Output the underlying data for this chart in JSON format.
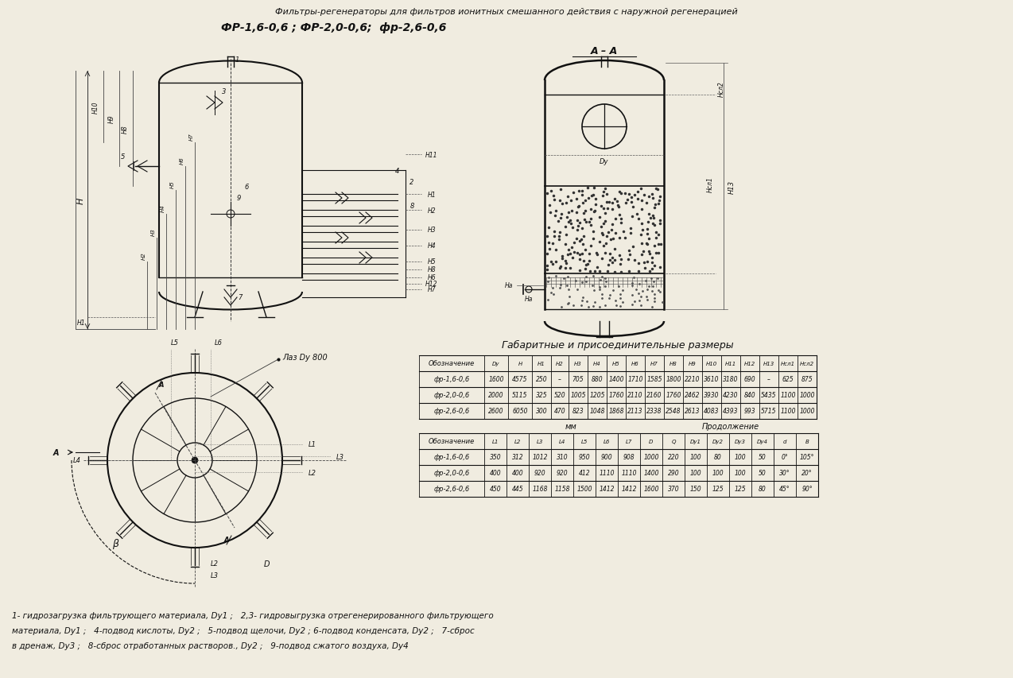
{
  "title_line1": "Фильтры-регенераторы для фильтров ионитных смешанного действия с наружной регенерацией",
  "title_line2": "ФР-1,6-0,6 ; ФР-2,0-0,6;  фр-2,6-0,6",
  "section_label": "А – А",
  "table_title": "Габаритные и присоединительные размеры",
  "mm_label": "мм",
  "prodolzhenie": "Продолжение",
  "table1_headers": [
    "Обозначение",
    "Dy",
    "H",
    "H1",
    "H2",
    "H3",
    "H4",
    "H5",
    "H6",
    "H7",
    "H8",
    "H9",
    "H10",
    "H11",
    "H12",
    "H13",
    "Нсл1",
    "Нсл2"
  ],
  "table1_rows": [
    [
      "фр-1,6-0,6",
      "1600",
      "4575",
      "250",
      "–",
      "705",
      "880",
      "1400",
      "1710",
      "1585",
      "1800",
      "2210",
      "3610",
      "3180",
      "690",
      "–",
      "625",
      "875"
    ],
    [
      "фр-2,0-0,6",
      "2000",
      "5115",
      "325",
      "520",
      "1005",
      "1205",
      "1760",
      "2110",
      "2160",
      "1760",
      "2462",
      "3930",
      "4230",
      "840",
      "5435",
      "1100",
      "1000"
    ],
    [
      "фр-2,6-0,6",
      "2600",
      "6050",
      "300",
      "470",
      "823",
      "1048",
      "1868",
      "2113",
      "2338",
      "2548",
      "2613",
      "4083",
      "4393",
      "993",
      "5715",
      "1100",
      "1000"
    ]
  ],
  "table2_headers": [
    "Обозначение",
    "L1",
    "L2",
    "L3",
    "L4",
    "L5",
    "L6",
    "L7",
    "D",
    "Q",
    "Dy1",
    "Dy2",
    "Dy3",
    "Dy4",
    "d",
    "B"
  ],
  "table2_rows": [
    [
      "фр-1,6-0,6",
      "350",
      "312",
      "1012",
      "310",
      "950",
      "900",
      "908",
      "1000",
      "220",
      "100",
      "80",
      "100",
      "50",
      "0°",
      "105°"
    ],
    [
      "фр-2,0-0,6",
      "400",
      "400",
      "920",
      "920",
      "412",
      "1110",
      "1110",
      "1400",
      "290",
      "100",
      "100",
      "100",
      "50",
      "30°",
      "20°"
    ],
    [
      "фр-2,6-0,6",
      "450",
      "445",
      "1168",
      "1158",
      "1500",
      "1412",
      "1412",
      "1600",
      "370",
      "150",
      "125",
      "125",
      "80",
      "45°",
      "90°"
    ]
  ],
  "footnote_lines": [
    "1- гидрозагрузка фильтрующего материала, Dy1 ;   2,3- гидровыгрузка отрегенерированного фильтрующего",
    "материала, Dy1 ;   4-подвод кислоты, Dy2 ;   5-подвод щелочи, Dy2 ; 6-подвод конденсата, Dy2 ;   7-сброс",
    "в дренаж, Dy3 ;   8-сброс отработанных растворов., Dy2 ;   9-подвод сжатого воздуха, Dy4"
  ],
  "laz_label": "Лаз Dy 800",
  "bg_color": "#f0ece0",
  "line_color": "#111111",
  "text_color": "#111111"
}
